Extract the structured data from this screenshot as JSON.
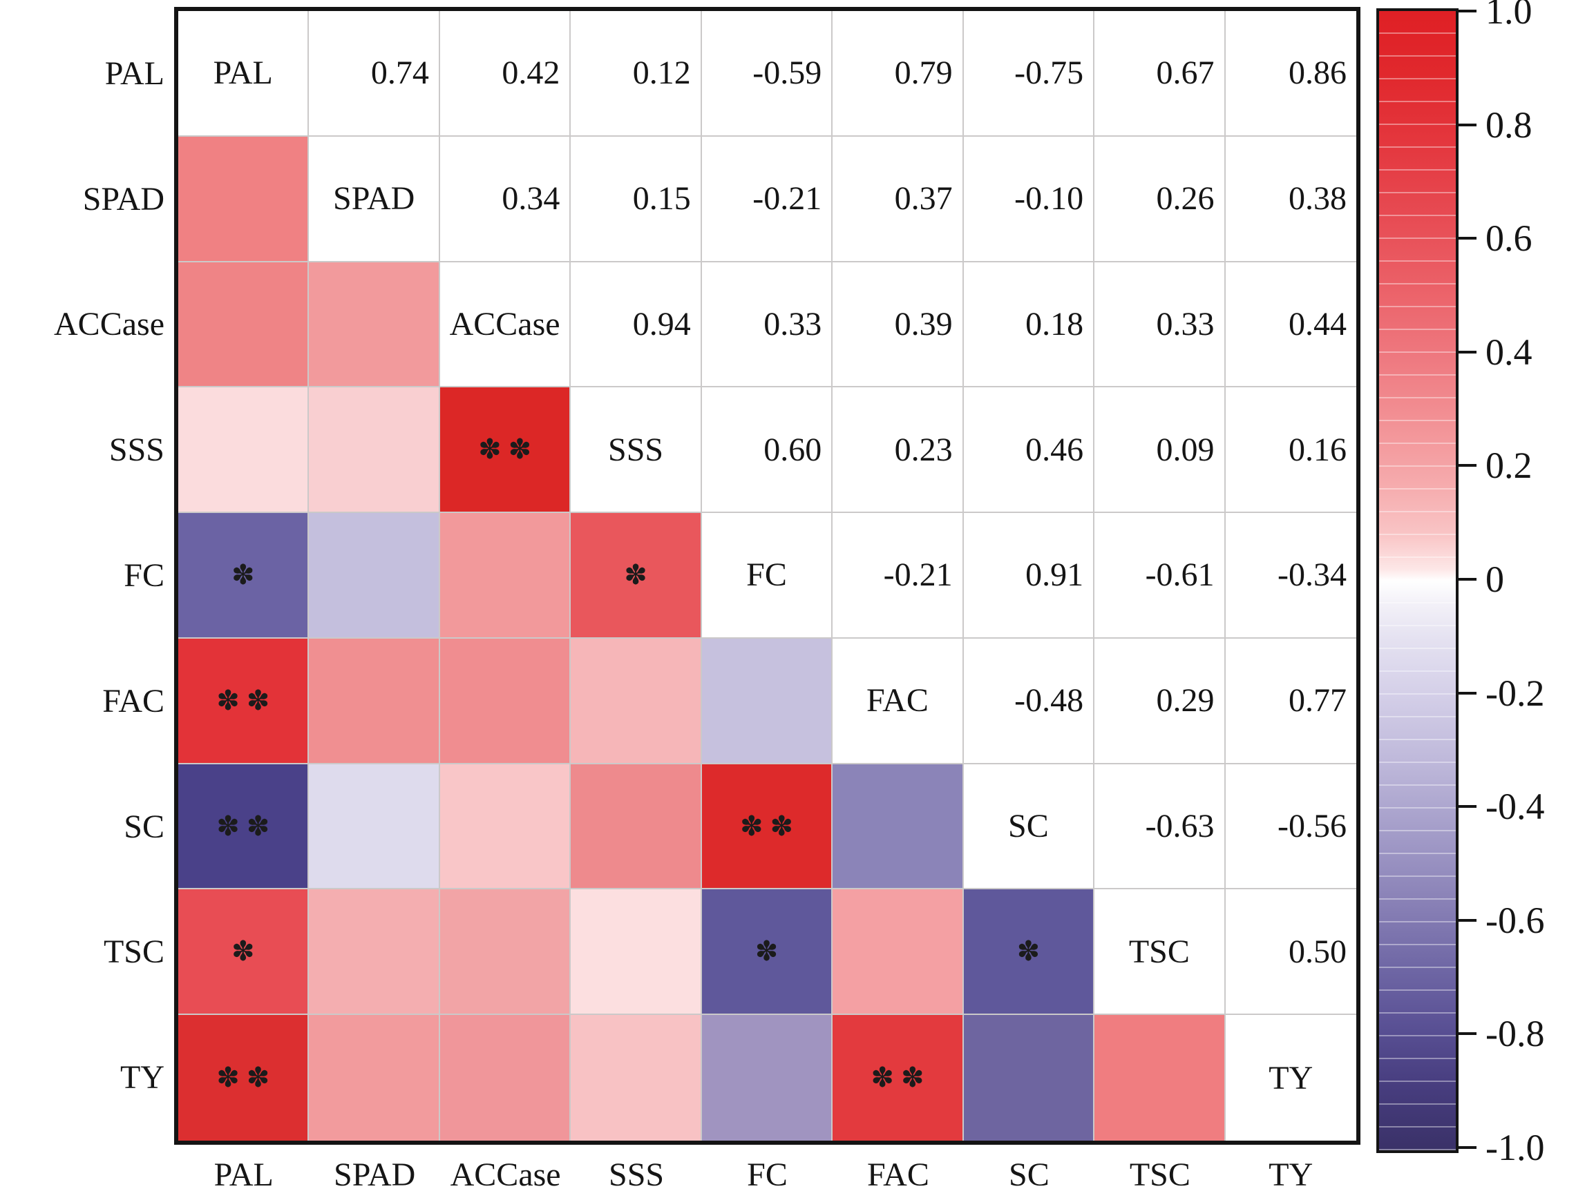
{
  "chart_data": {
    "type": "heatmap",
    "subtype": "correlation-matrix",
    "variables": [
      "PAL",
      "SPAD",
      "ACCase",
      "SSS",
      "FC",
      "FAC",
      "SC",
      "TSC",
      "TY"
    ],
    "upper_values": [
      [
        null,
        "0.74",
        "0.42",
        "0.12",
        "-0.59",
        "0.79",
        "-0.75",
        "0.67",
        "0.86"
      ],
      [
        null,
        null,
        "0.34",
        "0.15",
        "-0.21",
        "0.37",
        "-0.10",
        "0.26",
        "0.38"
      ],
      [
        null,
        null,
        null,
        "0.94",
        "0.33",
        "0.39",
        "0.18",
        "0.33",
        "0.44"
      ],
      [
        null,
        null,
        null,
        null,
        "0.60",
        "0.23",
        "0.46",
        "0.09",
        "0.16"
      ],
      [
        null,
        null,
        null,
        null,
        null,
        "-0.21",
        "0.91",
        "-0.61",
        "-0.34"
      ],
      [
        null,
        null,
        null,
        null,
        null,
        null,
        "-0.48",
        "0.29",
        "0.77"
      ],
      [
        null,
        null,
        null,
        null,
        null,
        null,
        null,
        "-0.63",
        "-0.56"
      ],
      [
        null,
        null,
        null,
        null,
        null,
        null,
        null,
        null,
        "0.50"
      ],
      [
        null,
        null,
        null,
        null,
        null,
        null,
        null,
        null,
        null
      ]
    ],
    "cell_colors": [
      [
        null,
        null,
        null,
        null,
        null,
        null,
        null,
        null,
        null
      ],
      [
        "#f08183",
        null,
        null,
        null,
        null,
        null,
        null,
        null,
        null
      ],
      [
        "#ef8486",
        "#f29a9c",
        null,
        null,
        null,
        null,
        null,
        null,
        null
      ],
      [
        "#fbdcdd",
        "#f9cfd1",
        "#dc2726",
        null,
        null,
        null,
        null,
        null,
        null
      ],
      [
        "#6b63a4",
        "#c4bfdd",
        "#f2999b",
        "#e9575c",
        null,
        null,
        null,
        null,
        null
      ],
      [
        "#e33338",
        "#f08f91",
        "#f08d90",
        "#f6b6b8",
        "#c6c1de",
        null,
        null,
        null,
        null
      ],
      [
        "#4a4189",
        "#dedbed",
        "#f9c6c8",
        "#ee8a8d",
        "#dd2a2b",
        "#8b84b8",
        null,
        null,
        null
      ],
      [
        "#e84d54",
        "#f4aeb0",
        "#f2a4a6",
        "#fcdfe0",
        "#5f589b",
        "#f4a0a3",
        "#5f589b",
        null,
        null
      ],
      [
        "#dc2f30",
        "#f29b9d",
        "#f0969a",
        "#f8c2c4",
        "#a094c0",
        "#e33a3e",
        "#6e65a0",
        "#f07d80",
        null
      ]
    ],
    "markers": [
      [
        "",
        "",
        "",
        "",
        "",
        "",
        "",
        "",
        ""
      ],
      [
        "",
        "",
        "",
        "",
        "",
        "",
        "",
        "",
        ""
      ],
      [
        "",
        "",
        "",
        "",
        "",
        "",
        "",
        "",
        ""
      ],
      [
        "",
        "",
        "**",
        "",
        "",
        "",
        "",
        "",
        ""
      ],
      [
        "*",
        "",
        "",
        "*",
        "",
        "",
        "",
        "",
        ""
      ],
      [
        "**",
        "",
        "",
        "",
        "",
        "",
        "",
        "",
        ""
      ],
      [
        "**",
        "",
        "",
        "",
        "**",
        "",
        "",
        "",
        ""
      ],
      [
        "*",
        "",
        "",
        "",
        "*",
        "",
        "*",
        "",
        ""
      ],
      [
        "**",
        "",
        "",
        "",
        "",
        "**",
        "",
        "",
        ""
      ]
    ],
    "marker_glyphs": {
      "*": "✽",
      "**": "✽✽"
    },
    "x_axis_labels": [
      "PAL",
      "SPAD",
      "ACCase",
      "SSS",
      "FC",
      "FAC",
      "SC",
      "TSC",
      "TY"
    ],
    "y_axis_labels": [
      "PAL",
      "SPAD",
      "ACCase",
      "SSS",
      "FC",
      "FAC",
      "SC",
      "TSC",
      "TY"
    ],
    "colorbar": {
      "range": [
        -1.0,
        1.0
      ],
      "tick_labels": [
        "1.0",
        "0.8",
        "0.6",
        "0.4",
        "0.2",
        "0",
        "-0.2",
        "-0.4",
        "-0.6",
        "-0.8",
        "-1.0"
      ],
      "gradient_stops": [
        [
          "#df2025",
          0
        ],
        [
          "#e1292e",
          6
        ],
        [
          "#e4383f",
          12
        ],
        [
          "#e74b53",
          18
        ],
        [
          "#eb6067",
          24
        ],
        [
          "#ee777e",
          30
        ],
        [
          "#f29195",
          36
        ],
        [
          "#f6adaf",
          42
        ],
        [
          "#f9c5c6",
          46
        ],
        [
          "#fde7e7",
          49
        ],
        [
          "#ffffff",
          50
        ],
        [
          "#f3f1f8",
          52
        ],
        [
          "#e5e2f1",
          55
        ],
        [
          "#d4cfe8",
          60
        ],
        [
          "#beb8da",
          66
        ],
        [
          "#a49dc9",
          72
        ],
        [
          "#8a82b7",
          78
        ],
        [
          "#6f67a5",
          84
        ],
        [
          "#5a5195",
          89
        ],
        [
          "#483e80",
          94
        ],
        [
          "#3a3168",
          100
        ]
      ],
      "positive_color": "#df2025",
      "zero_color": "#ffffff",
      "negative_color": "#3a3168"
    },
    "grid": true,
    "legend_position": "right"
  }
}
